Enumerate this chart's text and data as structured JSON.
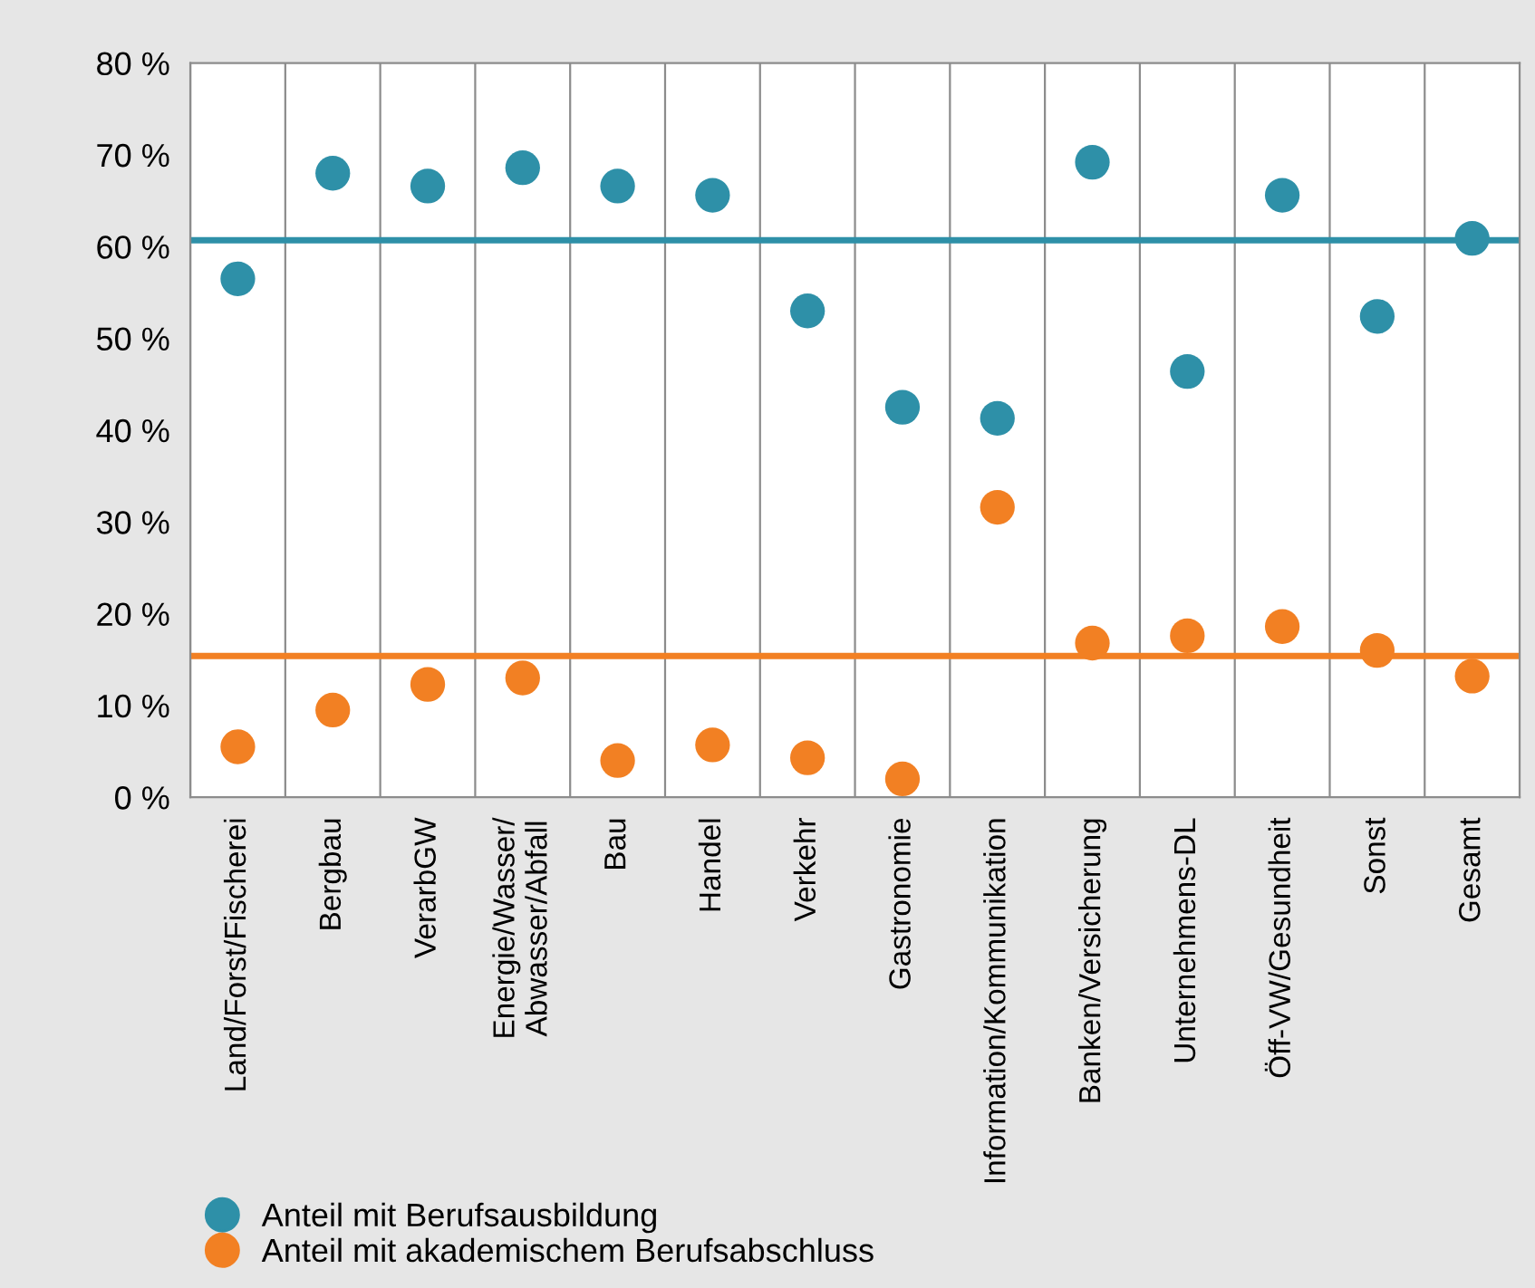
{
  "chart_data": {
    "type": "scatter",
    "categories": [
      "Land/Forst/Fischerei",
      "Bergbau",
      "VerarbGW",
      "Energie/Wasser/\nAbwasser/Abfall",
      "Bau",
      "Handel",
      "Verkehr",
      "Gastronomie",
      "Information/Kommunikation",
      "Banken/Versicherung",
      "Unternehmens-DL",
      "Öff-VW/Gesundheit",
      "Sonst",
      "Gesamt"
    ],
    "series": [
      {
        "name": "Anteil mit Berufsausbildung",
        "color": "#2e90a8",
        "values": [
          56.5,
          68,
          66.6,
          68.6,
          66.6,
          65.6,
          53,
          42.5,
          41.3,
          69.2,
          46.4,
          65.6,
          52.4,
          60.9
        ]
      },
      {
        "name": "Anteil mit akademischem Berufsabschluss",
        "color": "#f28023",
        "values": [
          5.5,
          9.5,
          12.3,
          13,
          4,
          5.7,
          4.3,
          2,
          31.6,
          16.8,
          17.6,
          18.6,
          16,
          13.2
        ]
      }
    ],
    "ref_lines": [
      {
        "axis": "y",
        "value": 60.7,
        "label": null,
        "color": "#2e90a8"
      },
      {
        "axis": "y",
        "value": 15.4,
        "label": null,
        "color": "#f28023"
      }
    ],
    "ylim": [
      0,
      80
    ],
    "yticks": [
      {
        "value": 0,
        "label": "0 %"
      },
      {
        "value": 10,
        "label": "10 %"
      },
      {
        "value": 20,
        "label": "20 %"
      },
      {
        "value": 30,
        "label": "30 %"
      },
      {
        "value": 40,
        "label": "40 %"
      },
      {
        "value": 50,
        "label": "50 %"
      },
      {
        "value": 60,
        "label": "60 %"
      },
      {
        "value": 70,
        "label": "70 %"
      },
      {
        "value": 80,
        "label": "80 %"
      }
    ],
    "grid": "x",
    "legend": "bottom left",
    "marker": "circle"
  }
}
